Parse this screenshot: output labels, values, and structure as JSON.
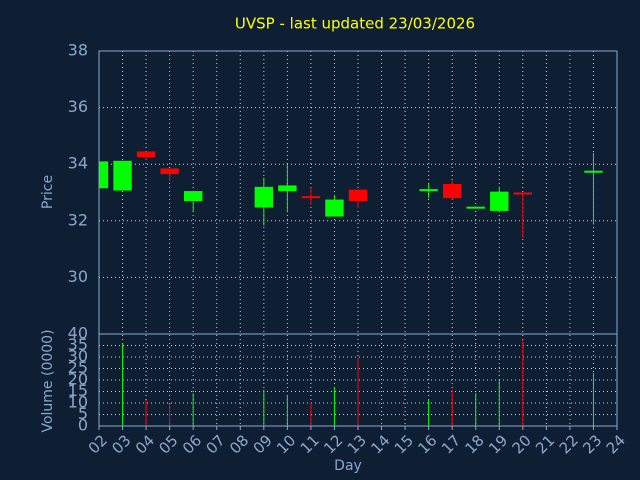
{
  "chart_data": {
    "type": "candlestick",
    "title": "UVSP - last updated 23/03/2026",
    "x_label": "Day",
    "y_label": "Price",
    "volume_label": "Volume (0000)",
    "categories": [
      "02",
      "03",
      "04",
      "05",
      "06",
      "07",
      "08",
      "09",
      "10",
      "11",
      "12",
      "13",
      "14",
      "15",
      "16",
      "17",
      "18",
      "19",
      "20",
      "21",
      "22",
      "23",
      "24"
    ],
    "open": [
      33.15,
      33.07,
      34.45,
      33.85,
      32.7,
      null,
      null,
      32.47,
      33.05,
      32.87,
      32.15,
      33.1,
      null,
      null,
      33.08,
      33.3,
      32.45,
      32.35,
      33.0,
      null,
      null,
      33.73,
      null
    ],
    "high": [
      34.1,
      34.12,
      34.45,
      33.85,
      33.05,
      null,
      null,
      33.52,
      33.98,
      33.17,
      32.9,
      33.1,
      null,
      null,
      33.3,
      33.42,
      32.5,
      33.2,
      33.0,
      null,
      null,
      34.4,
      null
    ],
    "low": [
      33.15,
      33.07,
      34.16,
      33.4,
      32.35,
      null,
      null,
      31.83,
      32.33,
      32.57,
      32.15,
      32.45,
      null,
      null,
      32.8,
      32.75,
      32.45,
      32.35,
      31.4,
      null,
      null,
      31.87,
      null
    ],
    "close": [
      34.1,
      34.12,
      34.25,
      33.65,
      33.05,
      null,
      null,
      33.2,
      33.25,
      32.83,
      32.75,
      32.7,
      null,
      null,
      33.12,
      32.8,
      32.5,
      33.03,
      32.95,
      null,
      null,
      33.77,
      null
    ],
    "volume": [
      null,
      36,
      11.3,
      9.5,
      14.3,
      null,
      null,
      15.7,
      13.5,
      10,
      17,
      29.6,
      null,
      null,
      11.7,
      15.7,
      14.3,
      20,
      37.4,
      null,
      null,
      23,
      null
    ],
    "up_color": "#00ff00",
    "down_color": "#ff0000",
    "ylim": [
      28,
      38
    ],
    "yticks": [
      30,
      32,
      34,
      36,
      38
    ],
    "volume_ylim": [
      0,
      40
    ],
    "volume_yticks": [
      0,
      5,
      10,
      15,
      20,
      25,
      30,
      35,
      40
    ],
    "grid": true
  }
}
